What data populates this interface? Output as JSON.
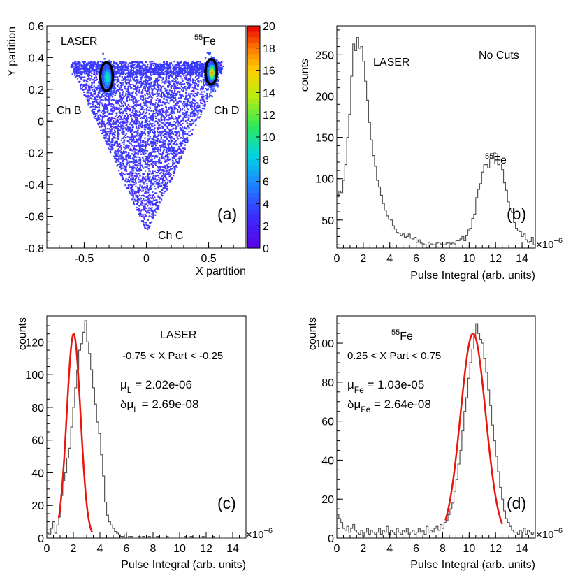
{
  "chart_data": [
    {
      "panel": "a",
      "type": "heatmap",
      "xlabel": "X partition",
      "ylabel": "Y partition",
      "xlim": [
        -0.8,
        0.8
      ],
      "ylim": [
        -0.8,
        0.6
      ],
      "x_ticks": [
        "-0.5",
        "0",
        "0.5"
      ],
      "x_tick_values": [
        -0.5,
        0,
        0.5
      ],
      "y_ticks": [
        "-0.8",
        "-0.6",
        "-0.4",
        "-0.2",
        "0",
        "0.2",
        "0.4",
        "0.6"
      ],
      "y_tick_values": [
        -0.8,
        -0.6,
        -0.4,
        -0.2,
        0,
        0.2,
        0.4,
        0.6
      ],
      "colorbar": {
        "min": 0,
        "max": 20,
        "ticks": [
          "0",
          "2",
          "4",
          "6",
          "8",
          "10",
          "12",
          "14",
          "16",
          "18",
          "20"
        ],
        "tick_values": [
          0,
          2,
          4,
          6,
          8,
          10,
          12,
          14,
          16,
          18,
          20
        ]
      },
      "annotations": {
        "laser": "LASER",
        "fe_sup": "55",
        "fe": "Fe",
        "ch_b": "Ch B",
        "ch_c": "Ch C",
        "ch_d": "Ch D",
        "panel_label": "(a)"
      },
      "region": {
        "vertices": [
          [
            -0.62,
            0.36
          ],
          [
            0.62,
            0.36
          ],
          [
            0.0,
            -0.7
          ]
        ]
      },
      "hotspots": [
        {
          "name": "LASER",
          "x": -0.32,
          "y": 0.28,
          "ellipse_rx": 0.05,
          "ellipse_ry": 0.09
        },
        {
          "name": "55Fe",
          "x": 0.52,
          "y": 0.31,
          "ellipse_rx": 0.045,
          "ellipse_ry": 0.08
        }
      ]
    },
    {
      "panel": "b",
      "type": "histogram",
      "xlabel": "Pulse Integral (arb. units)",
      "ylabel": "counts",
      "x_multiplier": "×10",
      "x_multiplier_exp": "−6",
      "xlim": [
        0,
        15
      ],
      "ylim": [
        16,
        285
      ],
      "x_ticks": [
        "0",
        "2",
        "4",
        "6",
        "8",
        "10",
        "12",
        "14"
      ],
      "x_tick_values": [
        0,
        2,
        4,
        6,
        8,
        10,
        12,
        14
      ],
      "y_ticks": [
        "50",
        "100",
        "150",
        "200",
        "250"
      ],
      "y_tick_values": [
        50,
        100,
        150,
        200,
        250
      ],
      "annotations": {
        "cuts": "No Cuts",
        "laser": "LASER",
        "fe_sup": "55",
        "fe": "Fe",
        "panel_label": "(b)"
      },
      "bin_width": 0.15,
      "values": [
        78,
        85,
        83,
        98,
        117,
        150,
        178,
        224,
        263,
        255,
        271,
        258,
        260,
        242,
        218,
        195,
        168,
        147,
        128,
        115,
        98,
        90,
        80,
        70,
        62,
        55,
        51,
        50,
        43,
        39,
        35,
        34,
        31,
        33,
        29,
        30,
        33,
        28,
        27,
        29,
        23,
        26,
        22,
        21,
        20,
        17,
        23,
        21,
        20,
        20,
        22,
        23,
        21,
        20,
        20,
        22,
        23,
        21,
        22,
        21,
        25,
        25,
        27,
        30,
        25,
        31,
        38,
        40,
        52,
        57,
        77,
        87,
        94,
        108,
        117,
        117,
        113,
        124,
        125,
        131,
        130,
        117,
        118,
        111,
        95,
        86,
        72,
        62,
        59,
        47,
        40,
        37,
        36,
        30,
        33,
        26,
        23,
        24,
        29,
        20
      ]
    },
    {
      "panel": "c",
      "type": "histogram_fit",
      "xlabel": "Pulse Integral (arb. units)",
      "ylabel": "counts",
      "x_multiplier": "×10",
      "x_multiplier_exp": "−6",
      "xlim": [
        0,
        15
      ],
      "ylim": [
        0,
        136
      ],
      "x_ticks": [
        "0",
        "2",
        "4",
        "6",
        "8",
        "10",
        "12",
        "14"
      ],
      "x_tick_values": [
        0,
        2,
        4,
        6,
        8,
        10,
        12,
        14
      ],
      "y_ticks": [
        "0",
        "20",
        "40",
        "60",
        "80",
        "100",
        "120"
      ],
      "y_tick_values": [
        0,
        20,
        40,
        60,
        80,
        100,
        120
      ],
      "annotations": {
        "title": "LASER",
        "cut": "-0.75 < X Part < -0.25",
        "mu_prefix": "μ",
        "mu_sub": "L",
        "mu_value": " = 2.02e-06",
        "dmu_prefix": "δμ",
        "dmu_sub": "L",
        "dmu_value": " = 2.69e-08",
        "panel_label": "(c)"
      },
      "bin_width": 0.15,
      "values": [
        3,
        2,
        6,
        10,
        3,
        8,
        13,
        26,
        35,
        40,
        49,
        55,
        68,
        80,
        92,
        103,
        115,
        119,
        126,
        133,
        120,
        113,
        103,
        92,
        82,
        71,
        64,
        51,
        38,
        22,
        14,
        10,
        8,
        6,
        4,
        3,
        2,
        1,
        1,
        2,
        0,
        1,
        1,
        0,
        0,
        0,
        1,
        0,
        1,
        0,
        0,
        1,
        0,
        0,
        0,
        1,
        0,
        0,
        0,
        0,
        1,
        0,
        0,
        0,
        0,
        0,
        0,
        0,
        0,
        1,
        0,
        0,
        1,
        0,
        0,
        0,
        0,
        0,
        1,
        0,
        0,
        0,
        0,
        1,
        0,
        0,
        0,
        0,
        0,
        0,
        0,
        0,
        0,
        0,
        0,
        0,
        0,
        0,
        0,
        0
      ],
      "fit": {
        "mean": 2.02,
        "sigma": 0.52,
        "amplitude": 125,
        "range": [
          0.9,
          3.4
        ]
      }
    },
    {
      "panel": "d",
      "type": "histogram_fit",
      "xlabel": "Pulse Integral (arb. units)",
      "ylabel": "counts",
      "x_multiplier": "×10",
      "x_multiplier_exp": "−6",
      "xlim": [
        0,
        15
      ],
      "ylim": [
        0,
        114
      ],
      "x_ticks": [
        "0",
        "2",
        "4",
        "6",
        "8",
        "10",
        "12",
        "14"
      ],
      "x_tick_values": [
        0,
        2,
        4,
        6,
        8,
        10,
        12,
        14
      ],
      "y_ticks": [
        "0",
        "20",
        "40",
        "60",
        "80",
        "100"
      ],
      "y_tick_values": [
        0,
        20,
        40,
        60,
        80,
        100
      ],
      "annotations": {
        "title_sup": "55",
        "title": "Fe",
        "cut": "0.25 < X Part < 0.75",
        "mu_prefix": "μ",
        "mu_sub": "Fe",
        "mu_value": " = 1.03e-05",
        "dmu_prefix": "δμ",
        "dmu_sub": "Fe",
        "dmu_value": " = 2.64e-08",
        "panel_label": "(d)"
      },
      "bin_width": 0.15,
      "values": [
        12,
        10,
        8,
        5,
        4,
        6,
        3,
        5,
        7,
        4,
        3,
        2,
        4,
        1,
        3,
        5,
        2,
        4,
        3,
        2,
        3,
        5,
        2,
        4,
        3,
        6,
        2,
        4,
        3,
        2,
        5,
        3,
        2,
        4,
        3,
        5,
        2,
        3,
        4,
        2,
        3,
        5,
        3,
        4,
        2,
        6,
        3,
        4,
        3,
        5,
        6,
        4,
        7,
        5,
        8,
        9,
        12,
        15,
        18,
        24,
        30,
        38,
        45,
        55,
        65,
        72,
        82,
        90,
        97,
        104,
        110,
        105,
        102,
        100,
        92,
        85,
        76,
        68,
        58,
        50,
        42,
        34,
        26,
        20,
        14,
        10,
        8,
        6,
        4,
        3,
        3,
        2,
        4,
        3,
        5,
        2,
        4,
        3,
        2,
        3
      ],
      "fit": {
        "mean": 10.3,
        "sigma": 0.95,
        "amplitude": 105,
        "range": [
          8.2,
          12.5
        ]
      }
    }
  ]
}
